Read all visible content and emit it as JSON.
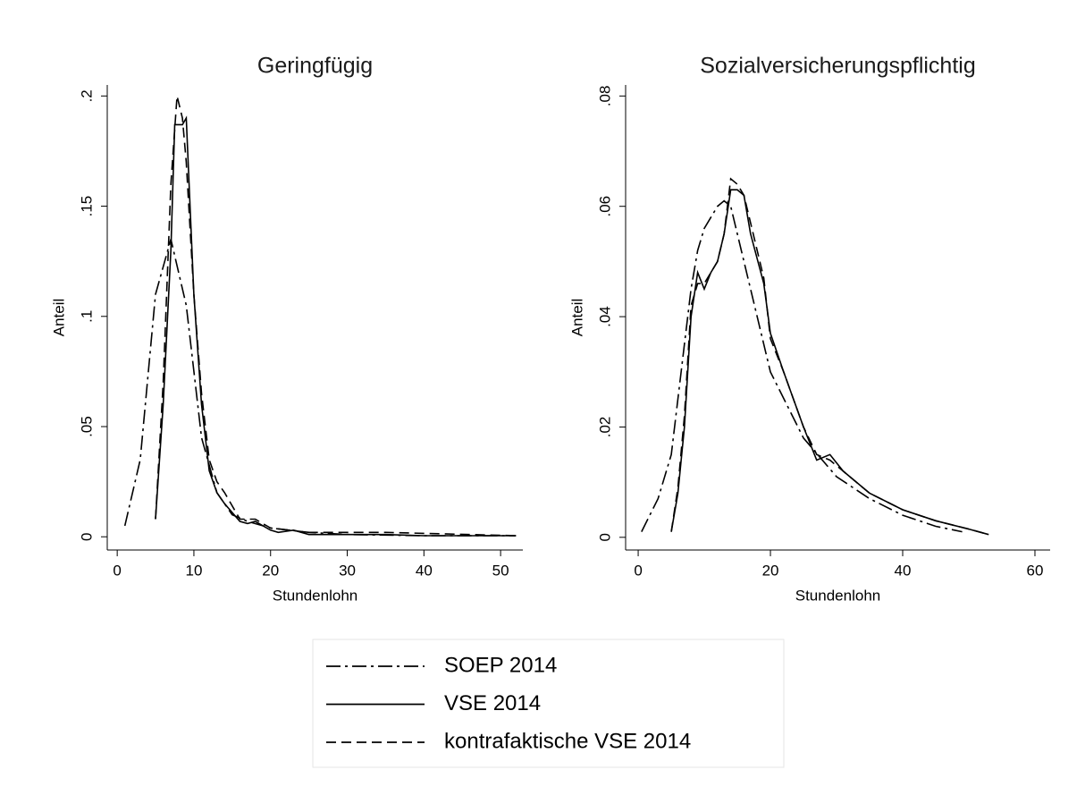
{
  "chart_data": [
    {
      "type": "line",
      "title": "Geringfügig",
      "xlabel": "Stundenlohn",
      "ylabel": "Anteil",
      "xlim": [
        -1.3,
        52.9
      ],
      "xticks": [
        0,
        10,
        20,
        30,
        40,
        50
      ],
      "ylim": [
        -0.006,
        0.205
      ],
      "yticks": [
        0,
        {
          "value": 0.05,
          "label": ".05"
        },
        {
          "value": 0.1,
          "label": ".1"
        },
        {
          "value": 0.15,
          "label": ".15"
        },
        {
          "value": 0.2,
          "label": ".2"
        }
      ],
      "series": [
        {
          "dash": "dashdot",
          "color": "#000000",
          "x": [
            1,
            3,
            5,
            7,
            9,
            11,
            13,
            15,
            17,
            20,
            25,
            30,
            40,
            52
          ],
          "values": [
            0.005,
            0.035,
            0.11,
            0.135,
            0.105,
            0.045,
            0.02,
            0.01,
            0.007,
            0.004,
            0.002,
            0.001,
            0.0005,
            0.0005
          ]
        },
        {
          "dash": "solid",
          "color": "#000000",
          "x": [
            5,
            6,
            7,
            7.5,
            8.5,
            9,
            10,
            11,
            12,
            13,
            14,
            16,
            17,
            18,
            19,
            20,
            21,
            23,
            25,
            30,
            35,
            40,
            52
          ],
          "values": [
            0.008,
            0.06,
            0.13,
            0.187,
            0.187,
            0.19,
            0.11,
            0.06,
            0.03,
            0.02,
            0.015,
            0.007,
            0.006,
            0.007,
            0.005,
            0.003,
            0.002,
            0.003,
            0.001,
            0.001,
            0.001,
            0.0005,
            0.0005
          ]
        },
        {
          "dash": "dash",
          "color": "#000000",
          "x": [
            5,
            6,
            7,
            7.8,
            8.5,
            9,
            10,
            11,
            12,
            13,
            14,
            16,
            18,
            20,
            25,
            35,
            52
          ],
          "values": [
            0.008,
            0.07,
            0.16,
            0.2,
            0.19,
            0.17,
            0.11,
            0.065,
            0.035,
            0.025,
            0.02,
            0.008,
            0.008,
            0.004,
            0.002,
            0.002,
            0.0005
          ]
        }
      ]
    },
    {
      "type": "line",
      "title": "Sozialversicherungspflichtig",
      "xlabel": "Stundenlohn",
      "ylabel": "Anteil",
      "xlim": [
        -1.9,
        62.3
      ],
      "xticks": [
        0,
        20,
        40,
        60
      ],
      "ylim": [
        -0.0023,
        0.082
      ],
      "yticks": [
        0,
        {
          "value": 0.02,
          "label": ".02"
        },
        {
          "value": 0.04,
          "label": ".04"
        },
        {
          "value": 0.06,
          "label": ".06"
        },
        {
          "value": 0.08,
          "label": ".08"
        }
      ],
      "series": [
        {
          "dash": "dashdot",
          "color": "#000000",
          "x": [
            0.5,
            3,
            5,
            7,
            8,
            9,
            10,
            12,
            13,
            14,
            15,
            17,
            20,
            25,
            30,
            35,
            40,
            45,
            49
          ],
          "values": [
            0.001,
            0.007,
            0.015,
            0.035,
            0.045,
            0.052,
            0.056,
            0.06,
            0.061,
            0.06,
            0.055,
            0.045,
            0.03,
            0.018,
            0.011,
            0.007,
            0.004,
            0.002,
            0.001
          ]
        },
        {
          "dash": "solid",
          "color": "#000000",
          "x": [
            5,
            6,
            7,
            8,
            9,
            10,
            11,
            12,
            13,
            14,
            15,
            16,
            17,
            19,
            20,
            22,
            25,
            27,
            29,
            31,
            35,
            40,
            45,
            50,
            53
          ],
          "values": [
            0.001,
            0.008,
            0.02,
            0.04,
            0.048,
            0.045,
            0.048,
            0.05,
            0.055,
            0.063,
            0.063,
            0.062,
            0.055,
            0.046,
            0.037,
            0.03,
            0.02,
            0.014,
            0.015,
            0.012,
            0.008,
            0.005,
            0.003,
            0.0015,
            0.0005
          ]
        },
        {
          "dash": "dash",
          "color": "#000000",
          "x": [
            5,
            6,
            7,
            8,
            9,
            10,
            11,
            12,
            13,
            14,
            15,
            16,
            17,
            19,
            20,
            22,
            25,
            27,
            29,
            31,
            35,
            40,
            45,
            50,
            53
          ],
          "values": [
            0.001,
            0.009,
            0.022,
            0.042,
            0.046,
            0.046,
            0.048,
            0.05,
            0.055,
            0.065,
            0.064,
            0.062,
            0.057,
            0.047,
            0.036,
            0.03,
            0.02,
            0.015,
            0.014,
            0.012,
            0.008,
            0.005,
            0.003,
            0.0015,
            0.0005
          ]
        }
      ]
    }
  ],
  "legend": [
    {
      "name": "SOEP 2014",
      "dash": "dashdot"
    },
    {
      "name": "VSE 2014",
      "dash": "solid"
    },
    {
      "name": "kontrafaktische VSE 2014",
      "dash": "dash"
    }
  ]
}
